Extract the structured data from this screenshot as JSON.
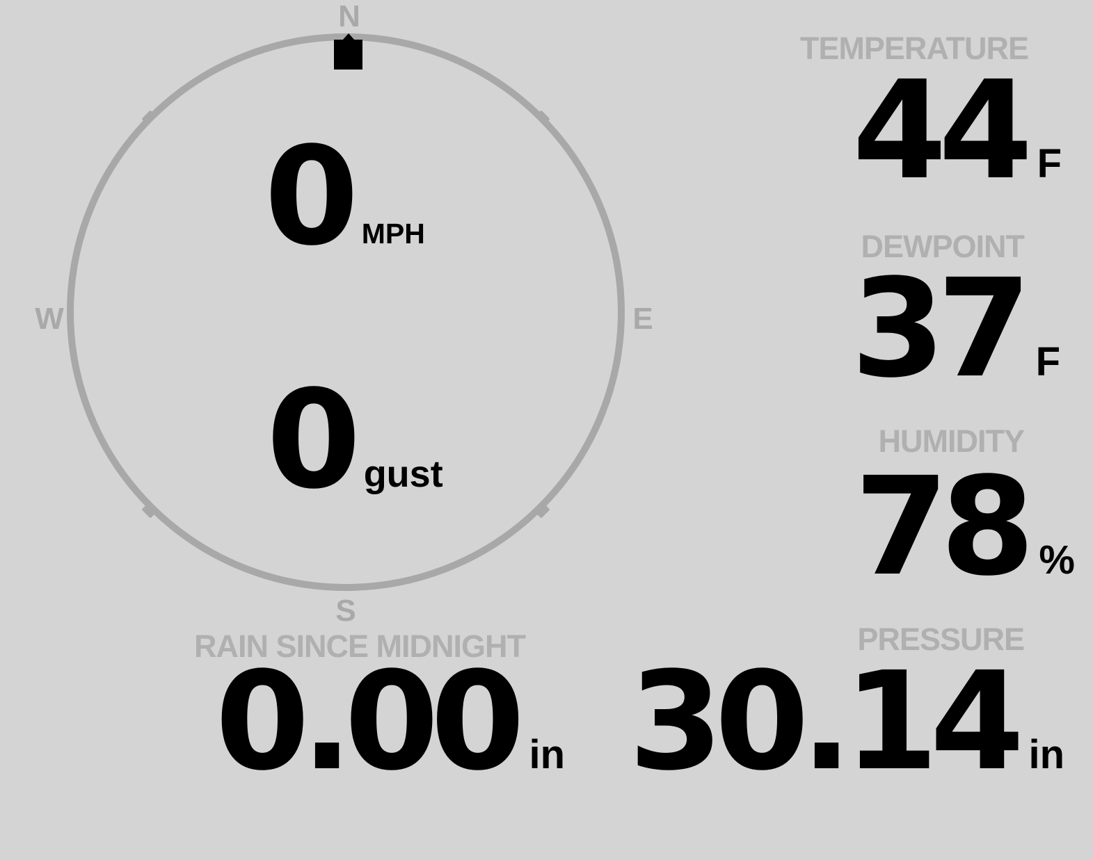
{
  "colors": {
    "background": "#d4d4d4",
    "compass_gray": "#a8a8a8",
    "label_gray": "#b0b0b0",
    "value_black": "#000000"
  },
  "compass": {
    "cardinals": {
      "north": "N",
      "south": "S",
      "east": "E",
      "west": "W"
    },
    "indicator": "wind-direction-marker-north",
    "wind": {
      "speed": "0",
      "speed_unit": "MPH",
      "gust": "0",
      "gust_unit": "gust"
    }
  },
  "metrics": {
    "temperature": {
      "label": "TEMPERATURE",
      "value": "44",
      "unit": "F"
    },
    "dewpoint": {
      "label": "DEWPOINT",
      "value": "37",
      "unit": "F"
    },
    "humidity": {
      "label": "HUMIDITY",
      "value": "78",
      "unit": "%"
    },
    "pressure": {
      "label": "PRESSURE",
      "value": "30.14",
      "unit": "in"
    },
    "rain": {
      "label": "RAIN SINCE MIDNIGHT",
      "value": "0.00",
      "unit": "in"
    }
  }
}
